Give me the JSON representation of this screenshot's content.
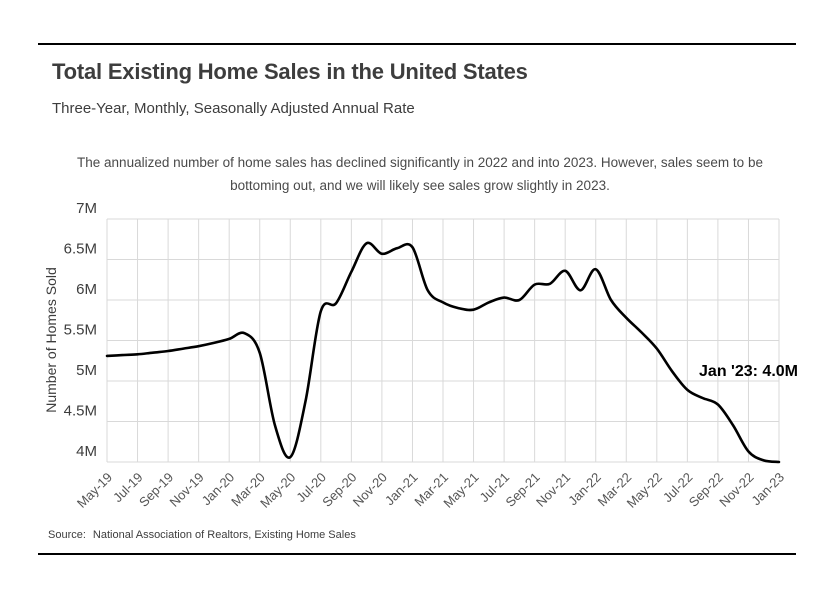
{
  "header": {
    "title": "Total Existing Home Sales in the United States",
    "subtitle": "Three-Year, Monthly, Seasonally Adjusted Annual Rate"
  },
  "note": "The annualized number of home sales has declined significantly in 2022 and into 2023. However, sales seem to be bottoming out, and we will likely see sales grow slightly in 2023.",
  "source": {
    "label": "Source:",
    "text": "National Association of Realtors, Existing Home Sales"
  },
  "colors": {
    "line": "#000000",
    "grid": "#d9d9d9",
    "title_text": "#3d3d3d",
    "tick_text": "#555555",
    "rule": "#000000"
  },
  "chart_data": {
    "type": "line",
    "title": "Total Existing Home Sales in the United States",
    "subtitle": "Three-Year, Monthly, Seasonally Adjusted Annual Rate",
    "xlabel": "",
    "ylabel": "Number of Homes Sold",
    "ylim": [
      4,
      7
    ],
    "grid": true,
    "legend_position": "none",
    "yticks": [
      "7M",
      "6.5M",
      "6M",
      "5.5M",
      "5M",
      "4.5M",
      "4M"
    ],
    "xticklabels": [
      "May-19",
      "Jul-19",
      "Sep-19",
      "Nov-19",
      "Jan-20",
      "Mar-20",
      "May-20",
      "Jul-20",
      "Sep-20",
      "Nov-20",
      "Jan-21",
      "Mar-21",
      "May-21",
      "Jul-21",
      "Sep-21",
      "Nov-21",
      "Jan-22",
      "Mar-22",
      "May-22",
      "Jul-22",
      "Sep-22",
      "Nov-22",
      "Jan-23"
    ],
    "x": [
      "May-19",
      "Jun-19",
      "Jul-19",
      "Aug-19",
      "Sep-19",
      "Oct-19",
      "Nov-19",
      "Dec-19",
      "Jan-20",
      "Feb-20",
      "Mar-20",
      "Apr-20",
      "May-20",
      "Jun-20",
      "Jul-20",
      "Aug-20",
      "Sep-20",
      "Oct-20",
      "Nov-20",
      "Dec-20",
      "Jan-21",
      "Feb-21",
      "Mar-21",
      "Apr-21",
      "May-21",
      "Jun-21",
      "Jul-21",
      "Aug-21",
      "Sep-21",
      "Oct-21",
      "Nov-21",
      "Dec-21",
      "Jan-22",
      "Feb-22",
      "Mar-22",
      "Apr-22",
      "May-22",
      "Jun-22",
      "Jul-22",
      "Aug-22",
      "Sep-22",
      "Oct-22",
      "Nov-22",
      "Dec-22",
      "Jan-23"
    ],
    "series": [
      {
        "name": "Existing Home Sales, Seasonally Adjusted Annual Rate (millions)",
        "values": [
          5.31,
          5.32,
          5.33,
          5.35,
          5.37,
          5.4,
          5.43,
          5.47,
          5.52,
          5.59,
          5.35,
          4.45,
          4.06,
          4.75,
          5.86,
          5.96,
          6.35,
          6.7,
          6.57,
          6.64,
          6.65,
          6.12,
          5.97,
          5.9,
          5.88,
          5.97,
          6.03,
          6.0,
          6.19,
          6.2,
          6.36,
          6.12,
          6.38,
          6.0,
          5.78,
          5.6,
          5.4,
          5.12,
          4.89,
          4.79,
          4.71,
          4.45,
          4.13,
          4.02,
          4.0
        ]
      }
    ],
    "annotation": {
      "text": "Jan '23: 4.0M",
      "x": "Jan-23",
      "y": 4.0
    }
  }
}
